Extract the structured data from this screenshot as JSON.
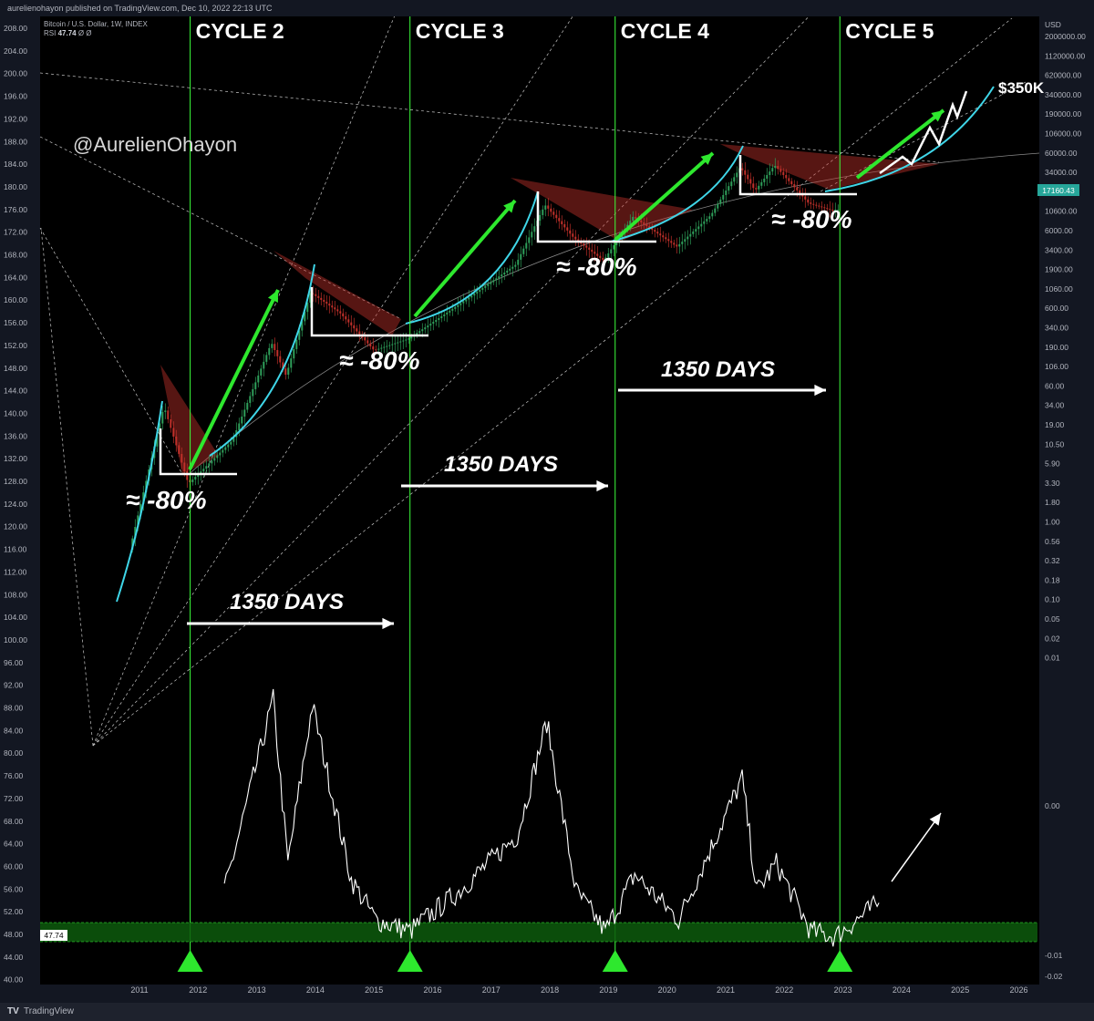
{
  "header": {
    "publish_line": "aurelienohayon published on TradingView.com, Dec 10, 2022 22:13 UTC"
  },
  "legend": {
    "instrument": "Bitcoin / U.S. Dollar, 1W, INDEX",
    "rsi_label": "RSI",
    "rsi_value": "47.74",
    "rsi_suffix": "Ø Ø"
  },
  "footer": {
    "brand": "TradingView"
  },
  "colors": {
    "background": "#000000",
    "cycle_line": "#3cff3c",
    "arrow_green": "#2ee82e",
    "curve_cyan": "#3fd6e8",
    "candle_red": "#c0302a",
    "candle_green": "#2e9e5a",
    "rsi_zone": "#0d5a0d",
    "text_white": "#ffffff",
    "axis_text": "#b2b5be"
  },
  "annotations": {
    "watermark": "@AurelienOhayon",
    "cycles": [
      "CYCLE 2",
      "CYCLE 3",
      "CYCLE 4",
      "CYCLE 5"
    ],
    "drawdown": "≈ -80%",
    "days": "1350 DAYS",
    "target": "$350K",
    "current_price": "17160.43",
    "rsi_badge": "47.74"
  },
  "chart_data": [
    {
      "type": "line",
      "title": "",
      "xlabel": "",
      "ylabel": "USD",
      "y_scale": "log",
      "x_ticks": [
        "2011",
        "2012",
        "2013",
        "2014",
        "2015",
        "2016",
        "2017",
        "2018",
        "2019",
        "2020",
        "2021",
        "2022",
        "2023",
        "2024",
        "2025",
        "2026"
      ],
      "left_axis_ticks": [
        "208.00",
        "204.00",
        "200.00",
        "196.00",
        "192.00",
        "188.00",
        "184.00",
        "180.00",
        "176.00",
        "172.00",
        "168.00",
        "164.00",
        "160.00",
        "156.00",
        "152.00",
        "148.00",
        "144.00",
        "140.00",
        "136.00",
        "132.00",
        "128.00",
        "124.00",
        "120.00",
        "116.00",
        "112.00",
        "108.00",
        "104.00",
        "100.00",
        "96.00",
        "92.00",
        "88.00",
        "84.00",
        "80.00",
        "76.00",
        "72.00",
        "68.00",
        "64.00",
        "60.00",
        "56.00",
        "52.00",
        "48.00",
        "44.00",
        "40.00"
      ],
      "right_axis_ticks": [
        "2000000.00",
        "1120000.00",
        "620000.00",
        "340000.00",
        "190000.00",
        "106000.00",
        "60000.00",
        "34000.00",
        "19000.00",
        "10600.00",
        "6000.00",
        "3400.00",
        "1900.00",
        "1060.00",
        "600.00",
        "340.00",
        "190.00",
        "106.00",
        "60.00",
        "34.00",
        "19.00",
        "10.50",
        "5.90",
        "3.30",
        "1.80",
        "1.00",
        "0.56",
        "0.32",
        "0.18",
        "0.10",
        "0.05",
        "0.02",
        "0.01"
      ],
      "rsi_axis_ticks": [
        "0.00",
        "-0.01",
        "-0.02"
      ],
      "price_series": {
        "x": [
          "2010-11",
          "2011-06",
          "2011-11",
          "2012-08",
          "2013-04",
          "2013-07",
          "2013-12",
          "2014-06",
          "2015-01",
          "2015-08",
          "2016-06",
          "2017-06",
          "2017-12",
          "2018-06",
          "2018-12",
          "2019-06",
          "2020-03",
          "2020-10",
          "2021-04",
          "2021-07",
          "2021-11",
          "2022-06",
          "2022-11",
          "2022-12"
        ],
        "y": [
          0.3,
          30,
          2.5,
          10,
          230,
          80,
          1150,
          600,
          180,
          260,
          750,
          2800,
          19000,
          6500,
          3200,
          13000,
          5000,
          13800,
          64000,
          30000,
          68000,
          20000,
          15800,
          17160
        ]
      },
      "rsi_series": {
        "x": [
          "2012-06",
          "2013-04",
          "2013-07",
          "2013-12",
          "2014-08",
          "2015-01",
          "2015-08",
          "2016-06",
          "2017-06",
          "2017-12",
          "2018-06",
          "2018-12",
          "2019-06",
          "2020-03",
          "2021-04",
          "2021-07",
          "2021-11",
          "2022-06",
          "2022-11",
          "2023-08"
        ],
        "y": [
          55,
          89,
          60,
          88,
          57,
          50,
          48,
          55,
          65,
          85,
          55,
          48,
          58,
          50,
          75,
          55,
          60,
          48,
          47,
          53
        ]
      },
      "cycle_starts": [
        "2011-11",
        "2015-08",
        "2019-02",
        "2022-12"
      ],
      "projection_target": "$350K"
    }
  ]
}
